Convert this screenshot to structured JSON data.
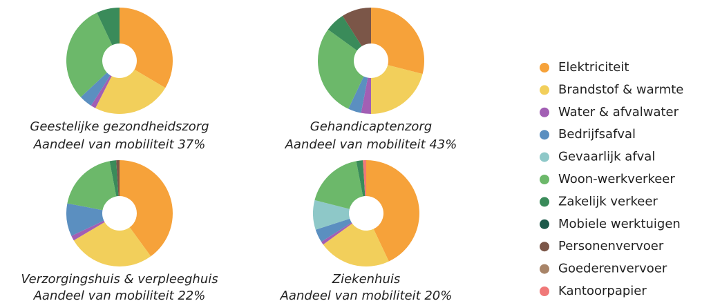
{
  "legend": {
    "categories": [
      "Elektriciteit",
      "Brandstof & warmte",
      "Water & afvalwater",
      "Bedrijfsafval",
      "Gevaarlijk afval",
      "Woon-werkverkeer",
      "Zakelijk verkeer",
      "Mobiele werktuigen",
      "Personenvervoer",
      "Goederenvervoer",
      "Kantoorpapier"
    ],
    "colors": [
      "#f6a23a",
      "#f2cf5b",
      "#a25fb4",
      "#5b8fc0",
      "#8ec8c8",
      "#6cb86a",
      "#3a8b5a",
      "#1d5a4a",
      "#7b5648",
      "#a88468",
      "#f07878"
    ]
  },
  "chart_data": [
    {
      "type": "pie",
      "donut": true,
      "title": "Geestelijke gezondheidszorg",
      "subtitle": "Aandeel van mobiliteit 37%",
      "values": [
        33.5,
        24,
        1.5,
        4,
        0,
        30,
        7,
        0,
        0,
        0,
        0
      ]
    },
    {
      "type": "pie",
      "donut": true,
      "title": "Gehandicaptenzorg",
      "subtitle": "Aandeel van mobiliteit 43%",
      "values": [
        29,
        21,
        3,
        4,
        0,
        28,
        6,
        0,
        9,
        0,
        0
      ]
    },
    {
      "type": "pie",
      "donut": true,
      "title": "Verzorgingshuis & verpleeghuis",
      "subtitle": "Aandeel van mobiliteit 22%",
      "values": [
        40,
        26.5,
        1.5,
        10,
        0,
        19,
        2,
        0,
        1,
        0,
        0
      ]
    },
    {
      "type": "pie",
      "donut": true,
      "title": "Ziekenhuis",
      "subtitle": "Aandeel van mobiliteit 20%",
      "values": [
        43,
        22,
        1,
        4,
        9,
        18,
        2,
        0,
        0,
        0,
        1
      ]
    }
  ]
}
